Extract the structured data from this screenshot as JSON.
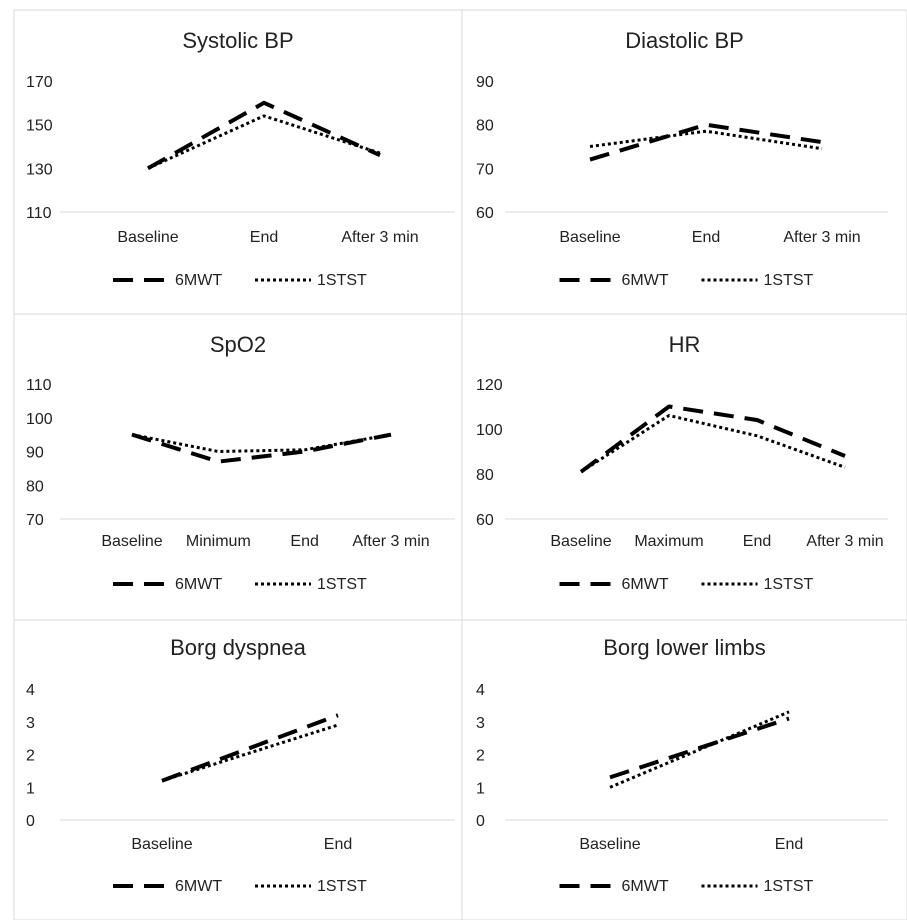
{
  "chart_data": [
    {
      "type": "line",
      "title": "Systolic BP",
      "categories": [
        "Baseline",
        "End",
        "After 3 min"
      ],
      "yticks": [
        "170",
        "150",
        "130",
        "110"
      ],
      "ylim": [
        110,
        170
      ],
      "series": [
        {
          "name": "6MWT",
          "style": "dash",
          "values": [
            130,
            160,
            136
          ]
        },
        {
          "name": "1STST",
          "style": "dot",
          "values": [
            130,
            154,
            137
          ]
        }
      ],
      "legend": "bottom"
    },
    {
      "type": "line",
      "title": "Diastolic BP",
      "categories": [
        "Baseline",
        "End",
        "After 3 min"
      ],
      "yticks": [
        "90",
        "80",
        "70",
        "60"
      ],
      "ylim": [
        60,
        90
      ],
      "series": [
        {
          "name": "6MWT",
          "style": "dash",
          "values": [
            72,
            80,
            76
          ]
        },
        {
          "name": "1STST",
          "style": "dot",
          "values": [
            75,
            78.5,
            74.5
          ]
        }
      ],
      "legend": "bottom"
    },
    {
      "type": "line",
      "title": "SpO2",
      "categories": [
        "Baseline",
        "Minimum",
        "End",
        "After 3 min"
      ],
      "yticks": [
        "110",
        "100",
        "90",
        "80",
        "70"
      ],
      "ylim": [
        70,
        110
      ],
      "series": [
        {
          "name": "6MWT",
          "style": "dash",
          "values": [
            95,
            87,
            90,
            95
          ]
        },
        {
          "name": "1STST",
          "style": "dot",
          "values": [
            95,
            90,
            90.5,
            95
          ]
        }
      ],
      "legend": "bottom"
    },
    {
      "type": "line",
      "title": "HR",
      "categories": [
        "Baseline",
        "Maximum",
        "End",
        "After 3 min"
      ],
      "yticks": [
        "120",
        "100",
        "80",
        "60"
      ],
      "ylim": [
        60,
        120
      ],
      "series": [
        {
          "name": "6MWT",
          "style": "dash",
          "values": [
            81,
            110,
            104,
            88
          ]
        },
        {
          "name": "1STST",
          "style": "dot",
          "values": [
            81,
            106,
            97,
            83
          ]
        }
      ],
      "legend": "bottom"
    },
    {
      "type": "line",
      "title": "Borg dyspnea",
      "categories": [
        "Baseline",
        "End"
      ],
      "yticks": [
        "4",
        "3",
        "2",
        "1",
        "0"
      ],
      "ylim": [
        0,
        4
      ],
      "series": [
        {
          "name": "6MWT",
          "style": "dash",
          "values": [
            1.2,
            3.2
          ]
        },
        {
          "name": "1STST",
          "style": "dot",
          "values": [
            1.2,
            2.9
          ]
        }
      ],
      "legend": "bottom"
    },
    {
      "type": "line",
      "title": "Borg lower limbs",
      "categories": [
        "Baseline",
        "End"
      ],
      "yticks": [
        "4",
        "3",
        "2",
        "1",
        "0"
      ],
      "ylim": [
        0,
        4
      ],
      "series": [
        {
          "name": "6MWT",
          "style": "dash",
          "values": [
            1.3,
            3.1
          ]
        },
        {
          "name": "1STST",
          "style": "dot",
          "values": [
            1.0,
            3.3
          ]
        }
      ],
      "legend": "bottom"
    }
  ]
}
